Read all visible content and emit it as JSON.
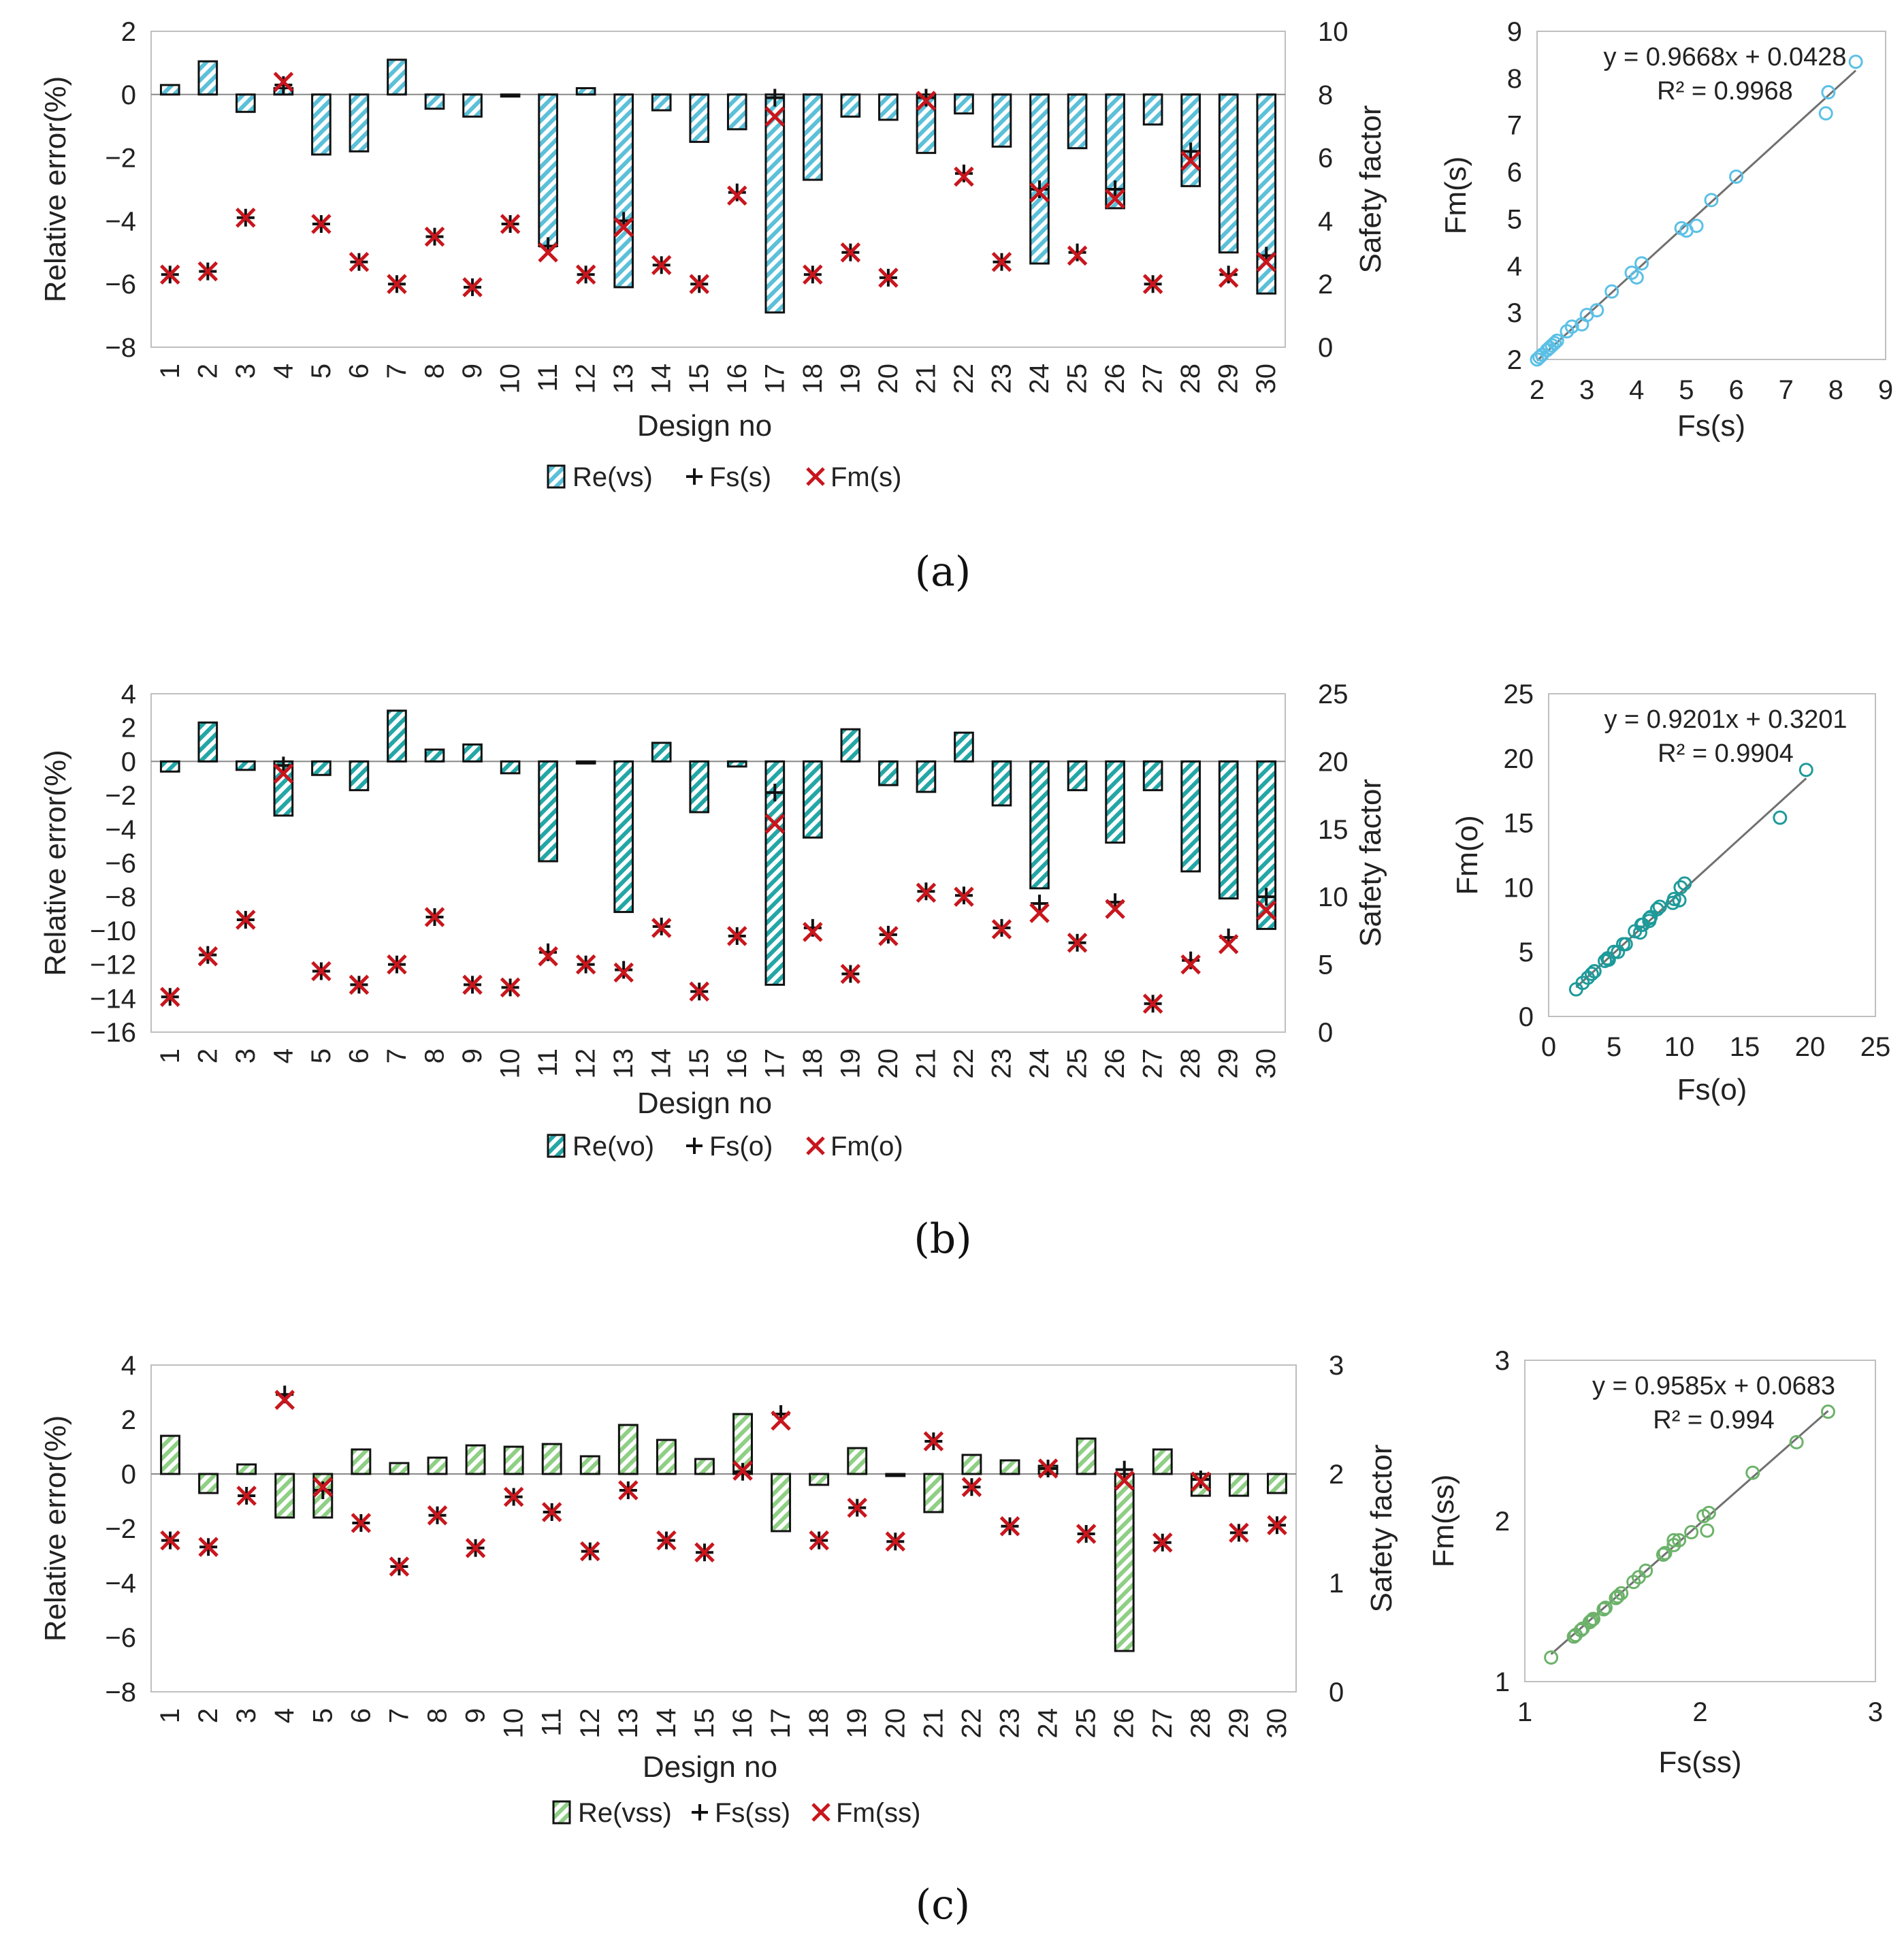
{
  "figure": {
    "panels": [
      {
        "id": "a",
        "label": "(a)"
      },
      {
        "id": "b",
        "label": "(b)"
      },
      {
        "id": "c",
        "label": "(c)"
      }
    ]
  },
  "chart_data": [
    {
      "id": "a-main",
      "type": "bar",
      "xlabel": "Design no",
      "ylabel": "Relative error(%)",
      "y2label": "Safety factor",
      "categories": [
        "1",
        "2",
        "3",
        "4",
        "5",
        "6",
        "7",
        "8",
        "9",
        "10",
        "11",
        "12",
        "13",
        "14",
        "15",
        "16",
        "17",
        "18",
        "19",
        "20",
        "21",
        "22",
        "23",
        "24",
        "25",
        "26",
        "27",
        "28",
        "29",
        "30"
      ],
      "ylim": [
        -8,
        2
      ],
      "yticks": [
        2,
        0,
        -2,
        -4,
        -6,
        -8
      ],
      "y2lim": [
        0,
        10
      ],
      "y2ticks": [
        10,
        8,
        6,
        4,
        2,
        0
      ],
      "bar_series": {
        "name": "Re(vs)",
        "values": [
          0.3,
          1.05,
          -0.55,
          0.2,
          -1.9,
          -1.8,
          1.1,
          -0.45,
          -0.7,
          -0.05,
          -4.8,
          0.2,
          -6.1,
          -0.5,
          -1.5,
          -1.1,
          -6.9,
          -2.7,
          -0.7,
          -0.8,
          -1.85,
          -0.6,
          -1.65,
          -5.35,
          -1.7,
          -3.6,
          -0.95,
          -2.9,
          -5.0,
          -6.3
        ]
      },
      "scatter_series": [
        {
          "name": "Fs(s)",
          "marker": "plus",
          "values": [
            2.3,
            2.4,
            4.1,
            8.3,
            3.9,
            2.7,
            2.0,
            3.5,
            1.9,
            3.9,
            3.2,
            2.3,
            4.0,
            2.6,
            2.0,
            4.9,
            7.9,
            2.3,
            3.0,
            2.2,
            7.9,
            5.5,
            2.7,
            5.0,
            3.0,
            5.0,
            2.0,
            6.2,
            2.3,
            2.9
          ]
        },
        {
          "name": "Fm(s)",
          "marker": "x",
          "values": [
            2.3,
            2.4,
            4.1,
            8.4,
            3.9,
            2.7,
            2.0,
            3.5,
            1.9,
            3.9,
            3.0,
            2.3,
            3.8,
            2.6,
            2.0,
            4.8,
            7.3,
            2.3,
            3.0,
            2.2,
            7.8,
            5.4,
            2.7,
            4.9,
            2.9,
            4.7,
            2.0,
            5.9,
            2.2,
            2.7
          ]
        }
      ],
      "legend": [
        "Re(vs)",
        "Fs(s)",
        "Fm(s)"
      ],
      "legend_position": "bottom",
      "colors": {
        "bar": "#5bc0d8",
        "scatter_x": "#c8161d",
        "scatter_plus": "#111111"
      }
    },
    {
      "id": "a-scatter",
      "type": "scatter",
      "xlabel": "Fs(s)",
      "ylabel": "Fm(s)",
      "xlim": [
        2,
        9
      ],
      "ylim": [
        2,
        9
      ],
      "xticks": [
        2,
        3,
        4,
        5,
        6,
        7,
        8,
        9
      ],
      "yticks": [
        9,
        8,
        7,
        6,
        5,
        4,
        3,
        2
      ],
      "equation": "y = 0.9668x + 0.0428",
      "r2": "R² = 0.9968",
      "slope": 0.9668,
      "intercept": 0.0428,
      "x": [
        2.0,
        2.05,
        2.1,
        2.2,
        2.25,
        2.3,
        2.35,
        2.4,
        2.6,
        2.7,
        2.9,
        3.0,
        3.2,
        3.5,
        3.9,
        4.0,
        4.1,
        4.9,
        5.0,
        5.2,
        5.5,
        6.0,
        7.8,
        7.85,
        8.4
      ],
      "y": [
        2.0,
        2.05,
        2.1,
        2.2,
        2.25,
        2.3,
        2.35,
        2.4,
        2.6,
        2.7,
        2.75,
        2.95,
        3.05,
        3.45,
        3.85,
        3.75,
        4.05,
        4.8,
        4.75,
        4.85,
        5.4,
        5.9,
        7.25,
        7.7,
        8.35
      ],
      "colors": {
        "marker": "#5bc0e6",
        "line": "#707070"
      }
    },
    {
      "id": "b-main",
      "type": "bar",
      "xlabel": "Design no",
      "ylabel": "Relative error(%)",
      "y2label": "Safety factor",
      "categories": [
        "1",
        "2",
        "3",
        "4",
        "5",
        "6",
        "7",
        "8",
        "9",
        "10",
        "11",
        "12",
        "13",
        "14",
        "15",
        "16",
        "17",
        "18",
        "19",
        "20",
        "21",
        "22",
        "23",
        "24",
        "25",
        "26",
        "27",
        "28",
        "29",
        "30"
      ],
      "ylim": [
        -16,
        4
      ],
      "yticks": [
        4,
        2,
        0,
        -2,
        -4,
        -6,
        -8,
        -10,
        -12,
        -14,
        -16
      ],
      "y2lim": [
        0,
        25
      ],
      "y2ticks": [
        25,
        20,
        15,
        10,
        5,
        0
      ],
      "bar_series": {
        "name": "Re(vo)",
        "values": [
          -0.6,
          2.3,
          -0.5,
          -3.2,
          -0.8,
          -1.7,
          3.0,
          0.7,
          1.0,
          -0.7,
          -5.9,
          -0.05,
          -8.9,
          1.1,
          -3.0,
          -0.3,
          -13.2,
          -4.5,
          1.9,
          -1.4,
          -1.8,
          1.7,
          -2.6,
          -7.5,
          -1.7,
          -4.8,
          -1.7,
          -6.5,
          -8.1,
          -9.9
        ]
      },
      "scatter_series": [
        {
          "name": "Fs(o)",
          "marker": "plus",
          "values": [
            2.6,
            5.7,
            8.3,
            19.7,
            4.5,
            3.5,
            5.0,
            8.5,
            3.5,
            3.3,
            5.9,
            5.0,
            4.6,
            7.8,
            3.0,
            7.1,
            17.7,
            7.7,
            4.3,
            7.2,
            10.4,
            10.1,
            7.7,
            9.5,
            6.6,
            9.6,
            2.1,
            5.3,
            7.0,
            10.0
          ]
        },
        {
          "name": "Fm(o)",
          "marker": "x",
          "values": [
            2.6,
            5.6,
            8.3,
            19.1,
            4.5,
            3.5,
            5.0,
            8.5,
            3.5,
            3.3,
            5.6,
            5.0,
            4.4,
            7.7,
            3.0,
            7.1,
            15.4,
            7.4,
            4.3,
            7.1,
            10.3,
            10.0,
            7.6,
            8.8,
            6.6,
            9.1,
            2.1,
            5.0,
            6.5,
            9.0
          ]
        }
      ],
      "legend": [
        "Re(vo)",
        "Fs(o)",
        "Fm(o)"
      ],
      "legend_position": "bottom",
      "colors": {
        "bar": "#23a6a6",
        "scatter_x": "#c8161d",
        "scatter_plus": "#111111"
      }
    },
    {
      "id": "b-scatter",
      "type": "scatter",
      "xlabel": "Fs(o)",
      "ylabel": "Fm(o)",
      "xlim": [
        0,
        25
      ],
      "ylim": [
        0,
        25
      ],
      "xticks": [
        0,
        5,
        10,
        15,
        20,
        25
      ],
      "yticks": [
        25,
        20,
        15,
        10,
        5,
        0
      ],
      "equation": "y = 0.9201x + 0.3201",
      "r2": "R² = 0.9904",
      "slope": 0.9201,
      "intercept": 0.3201,
      "x": [
        2.1,
        2.6,
        3.0,
        3.3,
        3.5,
        3.5,
        4.3,
        4.5,
        4.6,
        5.0,
        5.0,
        5.3,
        5.7,
        5.9,
        6.6,
        7.0,
        7.1,
        7.2,
        7.7,
        7.7,
        7.8,
        8.3,
        8.5,
        9.5,
        9.6,
        10.0,
        10.1,
        10.4,
        17.7,
        19.7
      ],
      "y": [
        2.1,
        2.6,
        3.0,
        3.3,
        3.5,
        3.5,
        4.3,
        4.5,
        4.4,
        5.0,
        5.0,
        5.0,
        5.6,
        5.6,
        6.6,
        6.5,
        7.1,
        7.1,
        7.6,
        7.4,
        7.7,
        8.3,
        8.5,
        8.8,
        9.1,
        9.0,
        10.0,
        10.3,
        15.4,
        19.1
      ],
      "colors": {
        "marker": "#1e9a9a",
        "line": "#707070"
      }
    },
    {
      "id": "c-main",
      "type": "bar",
      "xlabel": "Design no",
      "ylabel": "Relative error(%)",
      "y2label": "Safety factor",
      "categories": [
        "1",
        "2",
        "3",
        "4",
        "5",
        "6",
        "7",
        "8",
        "9",
        "10",
        "11",
        "12",
        "13",
        "14",
        "15",
        "16",
        "17",
        "18",
        "19",
        "20",
        "21",
        "22",
        "23",
        "24",
        "25",
        "26",
        "27",
        "28",
        "29",
        "30"
      ],
      "ylim": [
        -8,
        4
      ],
      "yticks": [
        4,
        2,
        0,
        -2,
        -4,
        -6,
        -8
      ],
      "y2lim": [
        0,
        3
      ],
      "y2ticks": [
        3,
        2,
        1,
        0
      ],
      "bar_series": {
        "name": "Re(vss)",
        "values": [
          1.4,
          -0.7,
          0.35,
          -1.6,
          -1.6,
          0.9,
          0.4,
          0.6,
          1.05,
          1.0,
          1.1,
          0.65,
          1.8,
          1.25,
          0.55,
          2.2,
          -2.1,
          -0.4,
          0.95,
          -0.05,
          -1.4,
          0.7,
          0.5,
          0.3,
          1.3,
          -6.5,
          0.9,
          -0.8,
          -0.8,
          -0.7
        ]
      },
      "scatter_series": [
        {
          "name": "Fs(ss)",
          "marker": "plus",
          "values": [
            1.39,
            1.33,
            1.8,
            2.73,
            1.85,
            1.55,
            1.15,
            1.62,
            1.32,
            1.79,
            1.65,
            1.29,
            1.85,
            1.39,
            1.28,
            2.02,
            2.55,
            1.39,
            1.69,
            1.38,
            2.3,
            1.88,
            1.52,
            2.05,
            1.45,
            2.04,
            1.37,
            1.95,
            1.46,
            1.53
          ]
        },
        {
          "name": "Fm(ss)",
          "marker": "x",
          "values": [
            1.39,
            1.33,
            1.8,
            2.68,
            1.88,
            1.55,
            1.15,
            1.62,
            1.32,
            1.79,
            1.65,
            1.29,
            1.85,
            1.39,
            1.28,
            2.03,
            2.49,
            1.39,
            1.69,
            1.38,
            2.3,
            1.88,
            1.52,
            2.05,
            1.45,
            1.94,
            1.37,
            1.93,
            1.46,
            1.53
          ]
        }
      ],
      "legend": [
        "Re(vss)",
        "Fs(ss)",
        "Fm(ss)"
      ],
      "legend_position": "bottom",
      "colors": {
        "bar": "#8fcf85",
        "scatter_x": "#c8161d",
        "scatter_plus": "#111111"
      }
    },
    {
      "id": "c-scatter",
      "type": "scatter",
      "xlabel": "Fs(ss)",
      "ylabel": "Fm(ss)",
      "xlim": [
        1,
        3
      ],
      "ylim": [
        1,
        3
      ],
      "xticks": [
        1,
        2,
        3
      ],
      "yticks": [
        3,
        2,
        1
      ],
      "equation": "y = 0.9585x + 0.0683",
      "r2": "R² = 0.994",
      "slope": 0.9585,
      "intercept": 0.0683,
      "x": [
        1.15,
        1.28,
        1.29,
        1.32,
        1.33,
        1.37,
        1.38,
        1.39,
        1.39,
        1.39,
        1.45,
        1.46,
        1.52,
        1.53,
        1.55,
        1.62,
        1.65,
        1.69,
        1.79,
        1.8,
        1.85,
        1.85,
        1.88,
        1.95,
        2.02,
        2.04,
        2.05,
        2.3,
        2.55,
        2.73
      ],
      "y": [
        1.15,
        1.28,
        1.29,
        1.32,
        1.33,
        1.37,
        1.38,
        1.39,
        1.39,
        1.39,
        1.45,
        1.46,
        1.52,
        1.53,
        1.55,
        1.62,
        1.65,
        1.69,
        1.79,
        1.8,
        1.88,
        1.85,
        1.88,
        1.93,
        2.03,
        1.94,
        2.05,
        2.3,
        2.49,
        2.68
      ],
      "colors": {
        "marker": "#6cb26a",
        "line": "#707070"
      }
    }
  ]
}
